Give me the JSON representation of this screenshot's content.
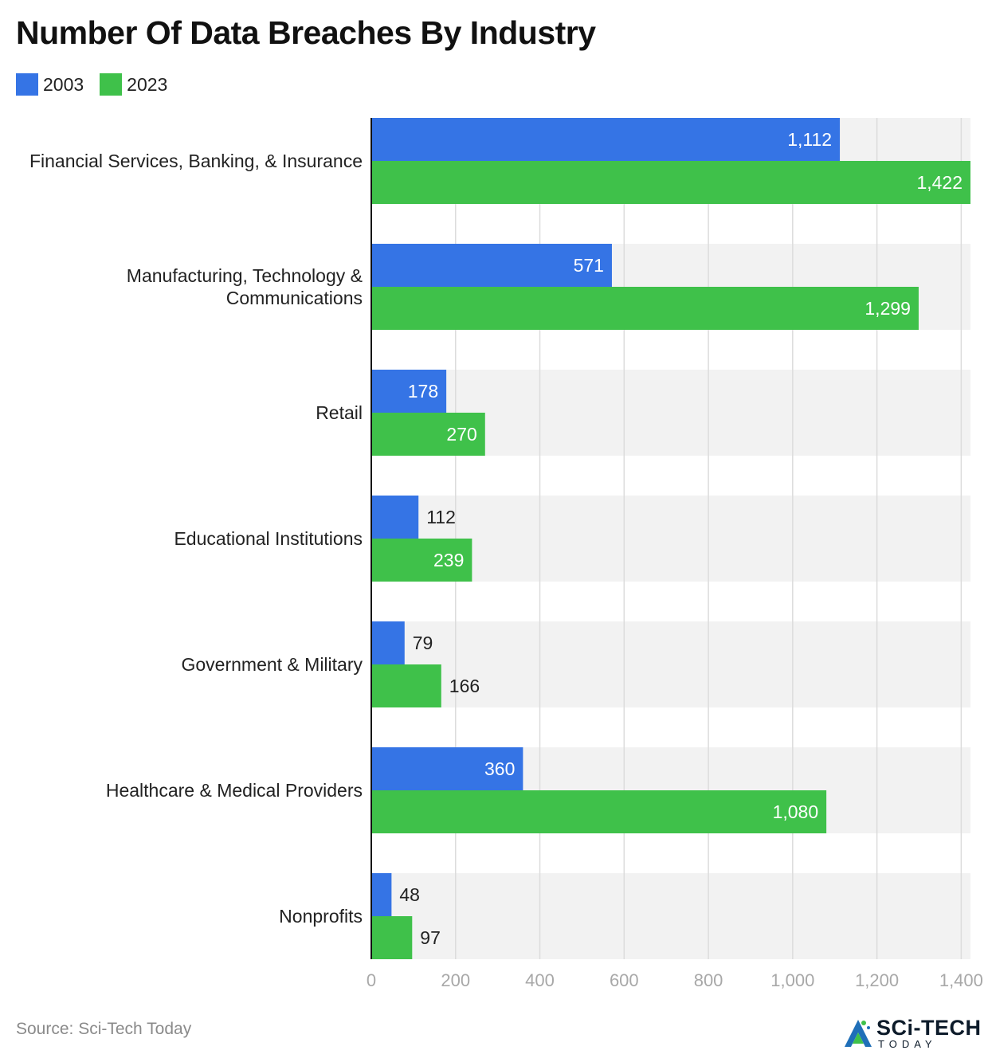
{
  "colors": {
    "series_2003": "#3574e5",
    "series_2023": "#3fc14a",
    "band": "#f2f2f2",
    "grid": "#dcdcdc",
    "axis": "#111111"
  },
  "legend": {
    "items": [
      {
        "label": "2003",
        "color": "#3574e5"
      },
      {
        "label": "2023",
        "color": "#3fc14a"
      }
    ]
  },
  "footer": {
    "source": "Source: Sci-Tech Today",
    "logo_main": "SCi-TECH",
    "logo_sub": "TODAY"
  },
  "chart_data": {
    "type": "bar",
    "orientation": "horizontal",
    "title": "Number Of Data Breaches By Industry",
    "categories": [
      [
        "Financial Services, Banking, & Insurance"
      ],
      [
        "Manufacturing, Technology &",
        "Communications"
      ],
      [
        "Retail"
      ],
      [
        "Educational Institutions"
      ],
      [
        "Government & Military"
      ],
      [
        "Healthcare & Medical Providers"
      ],
      [
        "Nonprofits"
      ]
    ],
    "series": [
      {
        "name": "2003",
        "values": [
          1112,
          571,
          178,
          112,
          79,
          360,
          48
        ],
        "labels": [
          "1,112",
          "571",
          "178",
          "112",
          "79",
          "360",
          "48"
        ]
      },
      {
        "name": "2023",
        "values": [
          1422,
          1299,
          270,
          239,
          166,
          1080,
          97
        ],
        "labels": [
          "1,422",
          "1,299",
          "270",
          "239",
          "166",
          "1,080",
          "97"
        ]
      }
    ],
    "xlim": [
      0,
      1422
    ],
    "xticks": [
      0,
      200,
      400,
      600,
      800,
      1000,
      1200,
      1400
    ],
    "xtick_labels": [
      "0",
      "200",
      "400",
      "600",
      "800",
      "1,000",
      "1,200",
      "1,400"
    ],
    "grid": true,
    "legend_position": "top-left"
  }
}
